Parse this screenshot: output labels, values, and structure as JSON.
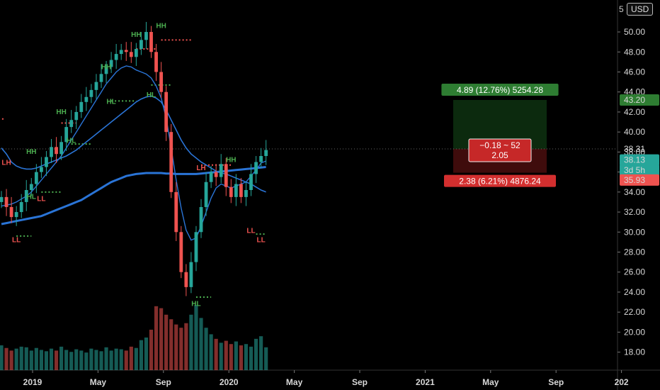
{
  "currency": "USD",
  "y_top_partial": "5",
  "colors": {
    "bg": "#000000",
    "up": "#26a69a",
    "down": "#ef5350",
    "ma": "#2a74d6",
    "hh": "#4caf50",
    "ll": "#ef5350",
    "dot_red": "#ef5350",
    "dot_green": "#4caf50"
  },
  "chart_data": {
    "type": "candlestick",
    "ylim": [
      16.2,
      52.2
    ],
    "yticks": [
      18,
      20,
      22,
      24,
      26,
      28,
      30,
      32,
      34,
      36,
      38,
      40,
      42,
      44,
      46,
      48,
      50
    ],
    "ytick_labels": [
      "18.00",
      "20.00",
      "22.00",
      "24.00",
      "26.00",
      "28.00",
      "30.00",
      "32.00",
      "34.00",
      "36.00",
      "38.00",
      "40.00",
      "42.00",
      "44.00",
      "46.00",
      "48.00",
      "50.00"
    ],
    "xticks": [
      {
        "label": "2019",
        "month_index": 0
      },
      {
        "label": "May",
        "month_index": 4
      },
      {
        "label": "Sep",
        "month_index": 8
      },
      {
        "label": "2020",
        "month_index": 12
      },
      {
        "label": "May",
        "month_index": 16
      },
      {
        "label": "Sep",
        "month_index": 20
      },
      {
        "label": "2021",
        "month_index": 24
      },
      {
        "label": "May",
        "month_index": 28
      },
      {
        "label": "Sep",
        "month_index": 32
      },
      {
        "label": "202",
        "month_index": 36
      }
    ],
    "closes": [
      33.5,
      32.5,
      31.5,
      32.0,
      33.0,
      34.2,
      34.8,
      36.0,
      36.5,
      37.5,
      38.5,
      37.8,
      39.0,
      40.5,
      41.2,
      42.0,
      43.0,
      43.5,
      44.2,
      45.0,
      45.8,
      46.5,
      47.2,
      47.8,
      48.2,
      48.0,
      47.5,
      48.3,
      49.2,
      50.0,
      48.0,
      46.0,
      44.0,
      40.0,
      34.0,
      30.0,
      26.0,
      24.5,
      27.0,
      30.0,
      32.5,
      35.0,
      36.0,
      35.5,
      36.8,
      34.5,
      33.5,
      34.8,
      33.5,
      34.2,
      35.8,
      37.0,
      37.6,
      38.2
    ],
    "volumes": [
      0.38,
      0.34,
      0.3,
      0.33,
      0.36,
      0.35,
      0.3,
      0.34,
      0.31,
      0.29,
      0.33,
      0.3,
      0.36,
      0.31,
      0.28,
      0.32,
      0.3,
      0.27,
      0.33,
      0.31,
      0.29,
      0.35,
      0.3,
      0.33,
      0.32,
      0.3,
      0.36,
      0.34,
      0.46,
      0.5,
      0.62,
      0.98,
      0.95,
      0.85,
      0.78,
      0.7,
      0.65,
      0.72,
      0.85,
      1.0,
      0.8,
      0.65,
      0.55,
      0.48,
      0.42,
      0.45,
      0.4,
      0.44,
      0.38,
      0.4,
      0.36,
      0.48,
      0.52,
      0.35
    ],
    "ma_fast": [
      32.6,
      32.7,
      32.8,
      33.0,
      33.3,
      33.6,
      34.0,
      34.6,
      35.2,
      35.8,
      36.4,
      37.0,
      37.6,
      38.4,
      39.2,
      40.0,
      40.8,
      41.6,
      42.4,
      43.2,
      44.0,
      44.8,
      45.4,
      46.0,
      46.4,
      46.6,
      46.5,
      46.2,
      46.0,
      45.8,
      45.4,
      44.6,
      43.4,
      41.4,
      38.4,
      35.2,
      32.4,
      30.2,
      29.2,
      29.4,
      30.6,
      32.0,
      33.4,
      34.4,
      34.8,
      34.6,
      34.4,
      34.6,
      34.8,
      35.0,
      35.6,
      36.2,
      36.9,
      37.1
    ],
    "ma_mid": [
      38.4,
      37.8,
      37.0,
      36.6,
      36.4,
      36.3,
      36.3,
      36.4,
      36.6,
      36.8,
      37.0,
      37.2,
      37.4,
      37.6,
      37.9,
      38.2,
      38.6,
      39.0,
      39.4,
      39.8,
      40.2,
      40.6,
      41.0,
      41.4,
      41.8,
      42.2,
      42.6,
      43.0,
      43.3,
      43.5,
      43.6,
      43.4,
      43.0,
      42.2,
      41.2,
      40.2,
      39.2,
      38.4,
      37.8,
      37.4,
      37.0,
      36.7,
      36.4,
      36.1,
      35.9,
      35.8,
      35.6,
      35.4,
      35.2,
      35.0,
      34.8,
      34.5,
      34.2,
      34.0
    ],
    "ma_slow": [
      30.8,
      30.9,
      31.0,
      31.1,
      31.2,
      31.3,
      31.4,
      31.5,
      31.6,
      31.8,
      32.0,
      32.2,
      32.4,
      32.6,
      32.8,
      33.0,
      33.2,
      33.5,
      33.8,
      34.1,
      34.4,
      34.7,
      35.0,
      35.2,
      35.4,
      35.6,
      35.7,
      35.8,
      35.85,
      35.9,
      35.9,
      35.9,
      35.9,
      35.85,
      35.85,
      35.8,
      35.8,
      35.8,
      35.8,
      35.8,
      35.85,
      35.9,
      35.95,
      36.0,
      36.05,
      36.1,
      36.15,
      36.2,
      36.25,
      36.3,
      36.35,
      36.4,
      36.45,
      36.5
    ],
    "markers": [
      {
        "label": "LH",
        "i": 1,
        "price": 36.7,
        "kind": "lh"
      },
      {
        "label": "LL",
        "i": 3,
        "price": 29.0,
        "kind": "ll"
      },
      {
        "label": "HH",
        "i": 6,
        "price": 37.8,
        "kind": "hh"
      },
      {
        "label": "HL",
        "i": 6,
        "price": 33.3,
        "kind": "hl"
      },
      {
        "label": "LL",
        "i": 8,
        "price": 33.1,
        "kind": "ll"
      },
      {
        "label": "HH",
        "i": 12,
        "price": 41.8,
        "kind": "hh"
      },
      {
        "label": "HL",
        "i": 14,
        "price": 38.9,
        "kind": "hl"
      },
      {
        "label": "HH",
        "i": 21,
        "price": 46.3,
        "kind": "hh"
      },
      {
        "label": "HL",
        "i": 22,
        "price": 42.8,
        "kind": "hl"
      },
      {
        "label": "HH",
        "i": 27,
        "price": 49.5,
        "kind": "hh"
      },
      {
        "label": "HL",
        "i": 30,
        "price": 43.5,
        "kind": "hl"
      },
      {
        "label": "HH",
        "i": 32,
        "price": 50.4,
        "kind": "hh"
      },
      {
        "label": "LH",
        "i": 40,
        "price": 36.2,
        "kind": "lh"
      },
      {
        "label": "HL",
        "i": 39,
        "price": 22.6,
        "kind": "hl"
      },
      {
        "label": "HH",
        "i": 46,
        "price": 37.0,
        "kind": "hh"
      },
      {
        "label": "LL",
        "i": 50,
        "price": 29.9,
        "kind": "ll"
      },
      {
        "label": "LL",
        "i": 52,
        "price": 29.0,
        "kind": "ll"
      }
    ],
    "dotted_levels": [
      {
        "price": 41.3,
        "from": -2,
        "to": 0.5,
        "color": "red"
      },
      {
        "price": 29.6,
        "from": 3,
        "to": 6,
        "color": "green"
      },
      {
        "price": 34.0,
        "from": 8,
        "to": 12,
        "color": "green"
      },
      {
        "price": 40.9,
        "from": 12,
        "to": 15,
        "color": "red"
      },
      {
        "price": 38.8,
        "from": 14,
        "to": 18,
        "color": "green"
      },
      {
        "price": 43.1,
        "from": 22,
        "to": 27,
        "color": "green"
      },
      {
        "price": 48.3,
        "from": 27,
        "to": 31,
        "color": "red"
      },
      {
        "price": 44.7,
        "from": 30,
        "to": 34,
        "color": "green"
      },
      {
        "price": 49.2,
        "from": 32,
        "to": 38,
        "color": "red"
      },
      {
        "price": 36.7,
        "from": 40,
        "to": 46,
        "color": "red"
      },
      {
        "price": 23.5,
        "from": 39,
        "to": 42,
        "color": "green"
      },
      {
        "price": 29.8,
        "from": 51,
        "to": 53,
        "color": "green"
      }
    ],
    "position": {
      "entry": 38.31,
      "target": 43.2,
      "stop": 35.93,
      "x_from_index": 58,
      "x_to_index": 68,
      "target_label": "4.89 (12.76%) 5254.28",
      "stop_label": "2.38 (6.21%) 4876.24",
      "mid_label_1": "−0.18 ~ 52",
      "mid_label_2": "2.05"
    },
    "right_tags": [
      {
        "text": "43.20",
        "price": 43.2,
        "bg": "#2e7d32",
        "fg": "#ffffff"
      },
      {
        "text": "38.31",
        "price": 38.31,
        "bg": "none",
        "fg": "#d8d8d8"
      },
      {
        "text": "38.13",
        "price": 37.2,
        "bg": "#26a69a",
        "fg": "#ffffff"
      },
      {
        "text": "3d 5h",
        "price": 36.2,
        "bg": "#26a69a",
        "fg": "#ffffff"
      },
      {
        "text": "35.93",
        "price": 35.2,
        "bg": "#ef5350",
        "fg": "#ffffff"
      }
    ]
  }
}
